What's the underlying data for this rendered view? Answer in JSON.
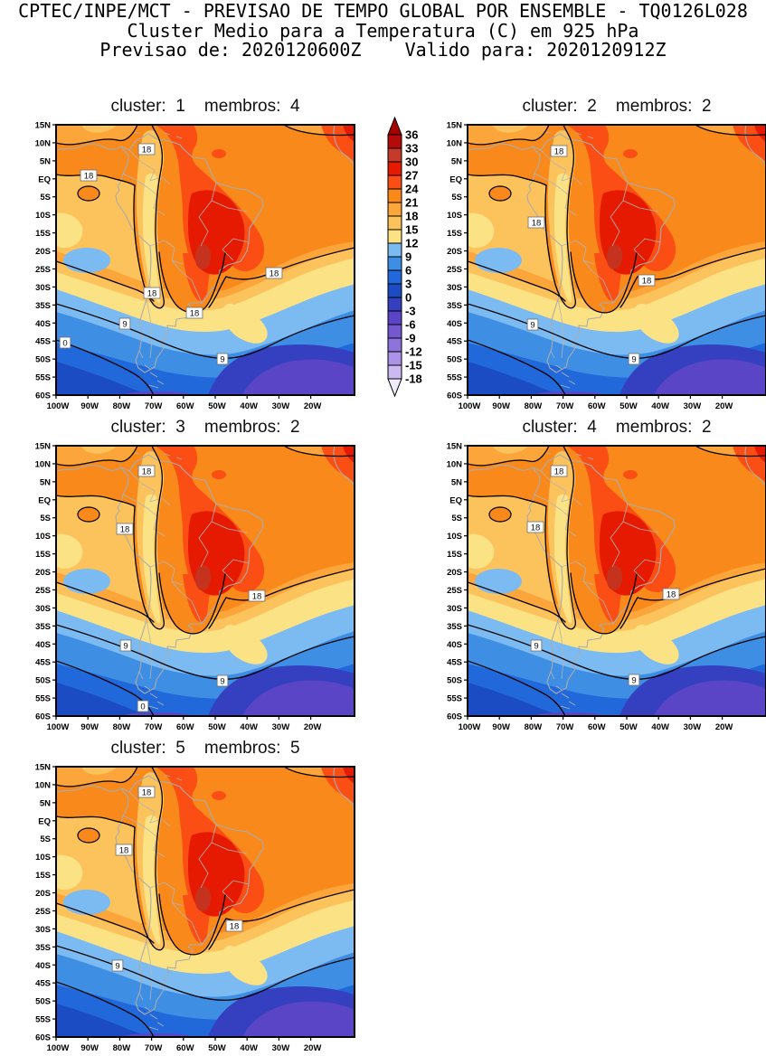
{
  "header": {
    "line1": "CPTEC/INPE/MCT - PREVISAO DE TEMPO GLOBAL POR ENSEMBLE - TQ0126L028",
    "line2": "Cluster Medio para a Temperatura (C) em 925 hPa",
    "line3": "Previsao de: 2020120600Z    Valido para: 2020120912Z"
  },
  "chart_data": {
    "type": "heatmap",
    "subtype": "filled-contour-geographic-map",
    "title": "Cluster Medio para a Temperatura (C) em 925 hPa",
    "model": "TQ0126L028",
    "init_time": "2020120600Z",
    "valid_time": "2020120912Z",
    "units": "C",
    "pressure_level_hpa": 925,
    "region": {
      "lon_left": "100W",
      "lon_right": "20W",
      "lat_top": "15N",
      "lat_bottom": "60S"
    },
    "x_ticks": [
      "100W",
      "90W",
      "80W",
      "70W",
      "60W",
      "50W",
      "40W",
      "30W",
      "20W"
    ],
    "y_ticks": [
      "15N",
      "10N",
      "5N",
      "EQ",
      "5S",
      "10S",
      "15S",
      "20S",
      "25S",
      "30S",
      "35S",
      "40S",
      "45S",
      "50S",
      "55S",
      "60S"
    ],
    "shading_interval_c": 3,
    "line_contour_interval_c": 9,
    "colorbar": {
      "levels": [
        36,
        33,
        30,
        27,
        24,
        21,
        18,
        15,
        12,
        9,
        6,
        3,
        0,
        -3,
        -6,
        -9,
        -12,
        -15,
        -18
      ],
      "box_colors": [
        "#B40A0A",
        "#C53A2B",
        "#E61A00",
        "#FA4E14",
        "#F9891A",
        "#FBA53A",
        "#FCC35C",
        "#FBE284",
        "#7CBAF2",
        "#3E8EE4",
        "#2169DA",
        "#1C4CC4",
        "#3440C0",
        "#5B45C7",
        "#7358CF",
        "#8F73DC",
        "#AD93E8",
        "#CDB9F2"
      ],
      "above_color": "#A60000",
      "below_color": "#F2EBFD",
      "legend_position": "between top panels"
    },
    "map_palette": {
      "land_coast_color": "#ABABAB",
      "contour_line_color": "#000000",
      "warm_core_color": "#E61A00",
      "tropics_background_color": "#F9891A",
      "cold_south_colors": [
        "#7CBAF2",
        "#3E8EE4",
        "#2169DA",
        "#1C4CC4",
        "#3440C0",
        "#5B45C7"
      ]
    },
    "panels": [
      {
        "cluster": 1,
        "membros": 4,
        "title": "cluster:  1    membros:  4",
        "contour_labels": [
          {
            "v": "18",
            "x": 100,
            "y": 27
          },
          {
            "v": "18",
            "x": 36,
            "y": 56
          },
          {
            "v": "18",
            "x": 106,
            "y": 186
          },
          {
            "v": "18",
            "x": 153,
            "y": 208
          },
          {
            "v": "18",
            "x": 241,
            "y": 164
          },
          {
            "v": "9",
            "x": 76,
            "y": 220
          },
          {
            "v": "9",
            "x": 184,
            "y": 259
          },
          {
            "v": "0",
            "x": 10,
            "y": 241
          }
        ]
      },
      {
        "cluster": 2,
        "membros": 2,
        "title": "cluster:  2    membros:  2",
        "contour_labels": [
          {
            "v": "18",
            "x": 101,
            "y": 29
          },
          {
            "v": "18",
            "x": 76,
            "y": 108
          },
          {
            "v": "18",
            "x": 198,
            "y": 172
          },
          {
            "v": "9",
            "x": 72,
            "y": 221
          },
          {
            "v": "9",
            "x": 184,
            "y": 259
          }
        ]
      },
      {
        "cluster": 3,
        "membros": 2,
        "title": "cluster:  3    membros:  2",
        "contour_labels": [
          {
            "v": "18",
            "x": 100,
            "y": 28
          },
          {
            "v": "18",
            "x": 76,
            "y": 92
          },
          {
            "v": "18",
            "x": 222,
            "y": 166
          },
          {
            "v": "9",
            "x": 77,
            "y": 221
          },
          {
            "v": "9",
            "x": 184,
            "y": 260
          },
          {
            "v": "0",
            "x": 96,
            "y": 288
          }
        ]
      },
      {
        "cluster": 4,
        "membros": 2,
        "title": "cluster:  4    membros:  2",
        "contour_labels": [
          {
            "v": "18",
            "x": 101,
            "y": 28
          },
          {
            "v": "18",
            "x": 75,
            "y": 90
          },
          {
            "v": "18",
            "x": 225,
            "y": 164
          },
          {
            "v": "9",
            "x": 76,
            "y": 221
          },
          {
            "v": "9",
            "x": 184,
            "y": 259
          }
        ]
      },
      {
        "cluster": 5,
        "membros": 5,
        "title": "cluster:  5    membros:  5",
        "contour_labels": [
          {
            "v": "18",
            "x": 100,
            "y": 28
          },
          {
            "v": "18",
            "x": 75,
            "y": 92
          },
          {
            "v": "18",
            "x": 197,
            "y": 176
          },
          {
            "v": "9",
            "x": 68,
            "y": 220
          }
        ]
      }
    ]
  }
}
